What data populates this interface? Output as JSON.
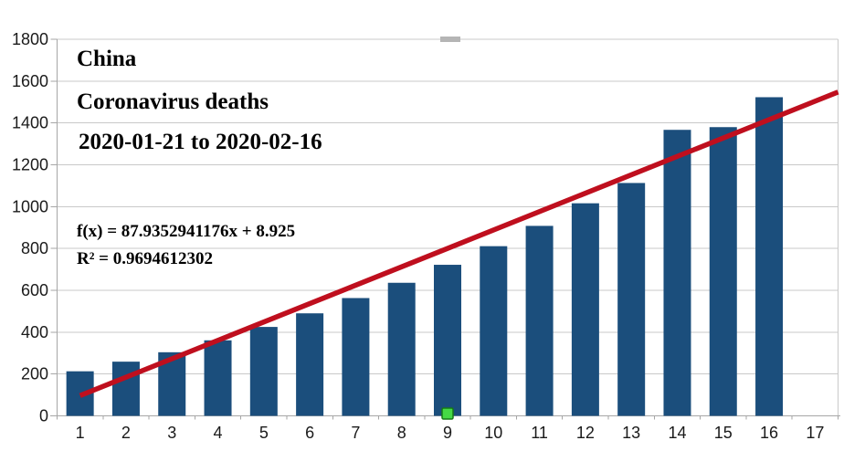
{
  "chart": {
    "title": "China",
    "subtitle": "Coronavirus deaths",
    "date_range": "2020-01-21 to 2020-02-16",
    "equation": "f(x) = 87.9352941176x + 8.925",
    "r_squared": "R² = 0.9694612302"
  },
  "chart_data": {
    "type": "bar",
    "title": "China",
    "subtitle": "Coronavirus deaths",
    "period": "2020-01-21 to 2020-02-16",
    "categories": [
      "1",
      "2",
      "3",
      "4",
      "5",
      "6",
      "7",
      "8",
      "9",
      "10",
      "11",
      "12",
      "13",
      "14",
      "15",
      "16",
      "17"
    ],
    "series": [
      {
        "name": "Coronavirus deaths",
        "values": [
          213,
          259,
          304,
          361,
          425,
          490,
          563,
          636,
          722,
          811,
          908,
          1016,
          1113,
          1367,
          1380,
          1523,
          null
        ]
      }
    ],
    "trendline": {
      "type": "linear",
      "equation_label": "f(x) = 87.9352941176x + 8.925",
      "r2_label": "R² = 0.9694612302",
      "slope": 87.9352941176,
      "intercept": 8.925,
      "x_start": 1,
      "x_end": 17.5
    },
    "xlabel": "",
    "ylabel": "",
    "ylim": [
      0,
      1800
    ],
    "yticks": [
      0,
      200,
      400,
      600,
      800,
      1000,
      1200,
      1400,
      1600,
      1800
    ],
    "grid": true,
    "legend_position": "none"
  },
  "colors": {
    "bar": "#1b4e7c",
    "trendline": "#bf0f1e",
    "gridline": "#c9c9c9",
    "axis": "#a6a6a6",
    "tick_label": "#1a1a1a",
    "selection_handle_fill": "#45d945",
    "selection_handle_border": "#167a16",
    "chart_area_handle": "#b5b5b5"
  },
  "selection": {
    "series_handle_category": "9",
    "chart_area_handle_visible": true
  }
}
